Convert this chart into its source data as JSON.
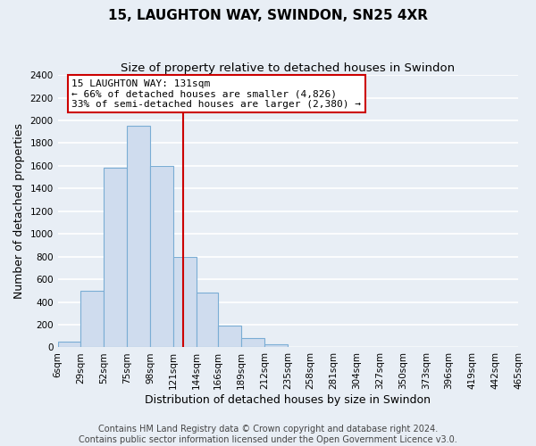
{
  "title": "15, LAUGHTON WAY, SWINDON, SN25 4XR",
  "subtitle": "Size of property relative to detached houses in Swindon",
  "xlabel": "Distribution of detached houses by size in Swindon",
  "ylabel": "Number of detached properties",
  "bin_edges": [
    6,
    29,
    52,
    75,
    98,
    121,
    144,
    166,
    189,
    212,
    235,
    258,
    281,
    304,
    327,
    350,
    373,
    396,
    419,
    442,
    465
  ],
  "bin_counts": [
    50,
    500,
    1580,
    1950,
    1600,
    800,
    480,
    190,
    80,
    25,
    0,
    0,
    0,
    0,
    0,
    0,
    0,
    0,
    0,
    0
  ],
  "bar_color": "#cfdcee",
  "bar_edge_color": "#7aadd4",
  "vline_x": 131,
  "vline_color": "#cc0000",
  "annotation_title": "15 LAUGHTON WAY: 131sqm",
  "annotation_line1": "← 66% of detached houses are smaller (4,826)",
  "annotation_line2": "33% of semi-detached houses are larger (2,380) →",
  "annotation_box_color": "#ffffff",
  "annotation_box_edge_color": "#cc0000",
  "ylim": [
    0,
    2400
  ],
  "yticks": [
    0,
    200,
    400,
    600,
    800,
    1000,
    1200,
    1400,
    1600,
    1800,
    2000,
    2200,
    2400
  ],
  "tick_labels": [
    "6sqm",
    "29sqm",
    "52sqm",
    "75sqm",
    "98sqm",
    "121sqm",
    "144sqm",
    "166sqm",
    "189sqm",
    "212sqm",
    "235sqm",
    "258sqm",
    "281sqm",
    "304sqm",
    "327sqm",
    "350sqm",
    "373sqm",
    "396sqm",
    "419sqm",
    "442sqm",
    "465sqm"
  ],
  "footer_line1": "Contains HM Land Registry data © Crown copyright and database right 2024.",
  "footer_line2": "Contains public sector information licensed under the Open Government Licence v3.0.",
  "background_color": "#e8eef5",
  "plot_bg_color": "#e8eef5",
  "grid_color": "#ffffff",
  "title_fontsize": 11,
  "subtitle_fontsize": 9.5,
  "axis_label_fontsize": 9,
  "tick_fontsize": 7.5,
  "footer_fontsize": 7
}
